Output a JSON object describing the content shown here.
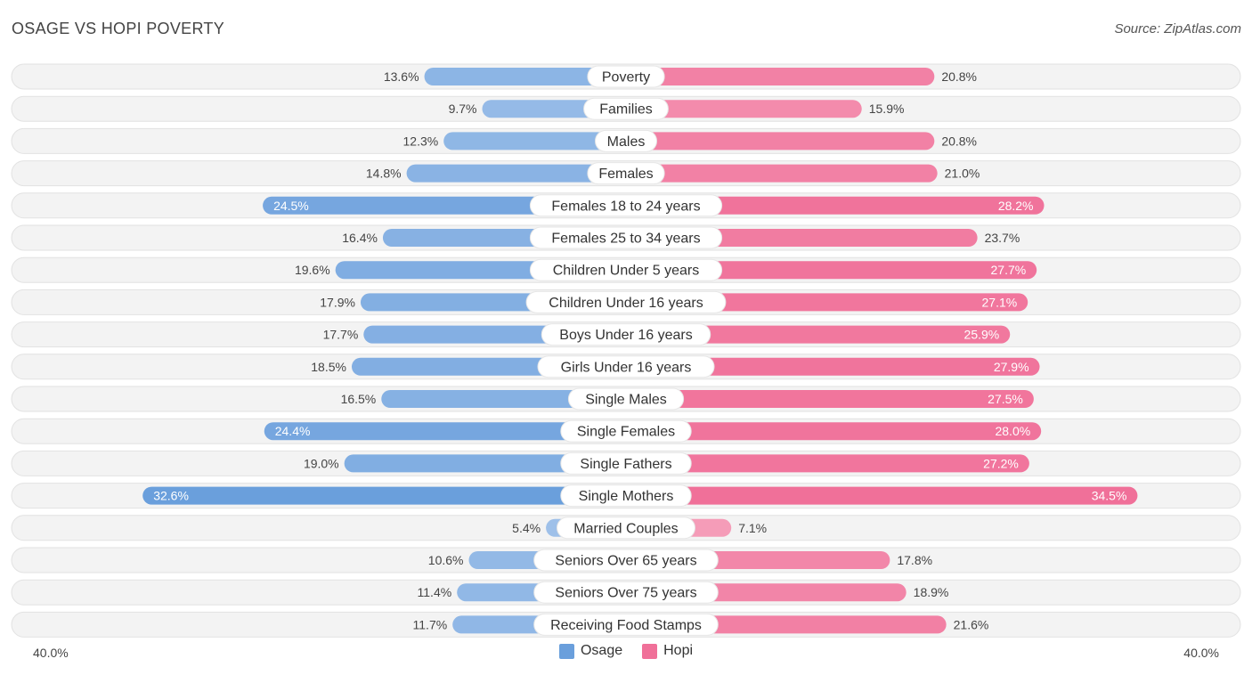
{
  "colors": {
    "osage": "#6a9fdc",
    "osage_light": "#a9c7ec",
    "hopi": "#f07099",
    "hopi_light": "#f6a9c1"
  },
  "chart_data": {
    "type": "bar",
    "orientation": "horizontal-diverging",
    "title": "OSAGE VS HOPI POVERTY",
    "source": "Source: ZipAtlas.com",
    "axis_min_label": "40.0%",
    "axis_max_label": "40.0%",
    "xlim": [
      0,
      40
    ],
    "categories": [
      "Poverty",
      "Families",
      "Males",
      "Females",
      "Females 18 to 24 years",
      "Females 25 to 34 years",
      "Children Under 5 years",
      "Children Under 16 years",
      "Boys Under 16 years",
      "Girls Under 16 years",
      "Single Males",
      "Single Females",
      "Single Fathers",
      "Single Mothers",
      "Married Couples",
      "Seniors Over 65 years",
      "Seniors Over 75 years",
      "Receiving Food Stamps"
    ],
    "series": [
      {
        "name": "Osage",
        "values": [
          13.6,
          9.7,
          12.3,
          14.8,
          24.5,
          16.4,
          19.6,
          17.9,
          17.7,
          18.5,
          16.5,
          24.4,
          19.0,
          32.6,
          5.4,
          10.6,
          11.4,
          11.7
        ],
        "labels": [
          "13.6%",
          "9.7%",
          "12.3%",
          "14.8%",
          "24.5%",
          "16.4%",
          "19.6%",
          "17.9%",
          "17.7%",
          "18.5%",
          "16.5%",
          "24.4%",
          "19.0%",
          "32.6%",
          "5.4%",
          "10.6%",
          "11.4%",
          "11.7%"
        ]
      },
      {
        "name": "Hopi",
        "values": [
          20.8,
          15.9,
          20.8,
          21.0,
          28.2,
          23.7,
          27.7,
          27.1,
          25.9,
          27.9,
          27.5,
          28.0,
          27.2,
          34.5,
          7.1,
          17.8,
          18.9,
          21.6
        ],
        "labels": [
          "20.8%",
          "15.9%",
          "20.8%",
          "21.0%",
          "28.2%",
          "23.7%",
          "27.7%",
          "27.1%",
          "25.9%",
          "27.9%",
          "27.5%",
          "28.0%",
          "27.2%",
          "34.5%",
          "7.1%",
          "17.8%",
          "18.9%",
          "21.6%"
        ]
      }
    ],
    "legend": [
      "Osage",
      "Hopi"
    ],
    "legend_position": "bottom-center"
  }
}
